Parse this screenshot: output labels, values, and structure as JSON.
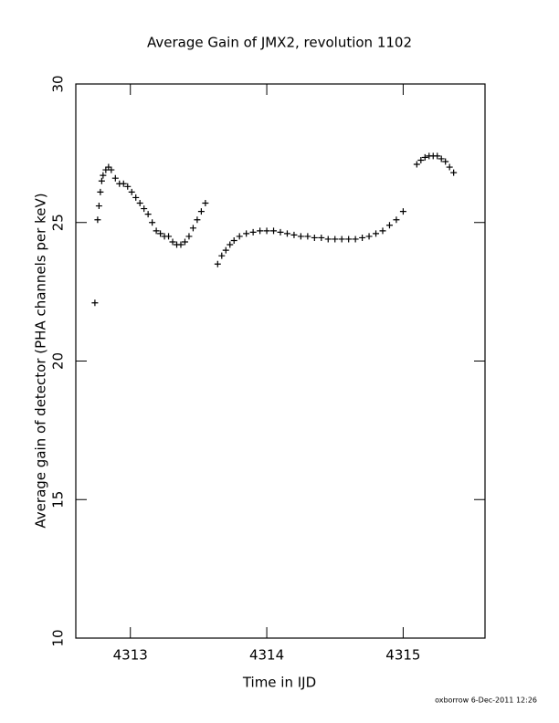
{
  "chart_data": {
    "type": "scatter",
    "title": "Average Gain of JMX2, revolution 1102",
    "x_label": "Time in IJD",
    "y_label": "Average gain of detector (PHA channels per keV)",
    "footer": "oxborrow  6-Dec-2011 12:26",
    "xlim": [
      4312.6,
      4315.6
    ],
    "xticks": [
      4313,
      4314,
      4315
    ],
    "ylim": [
      10,
      30
    ],
    "yticks": [
      10,
      15,
      20,
      25,
      30
    ],
    "color": "#000000",
    "x": [
      4312.74,
      4312.76,
      4312.77,
      4312.78,
      4312.79,
      4312.8,
      4312.82,
      4312.84,
      4312.86,
      4312.89,
      4312.92,
      4312.95,
      4312.98,
      4313.01,
      4313.04,
      4313.07,
      4313.1,
      4313.13,
      4313.16,
      4313.19,
      4313.22,
      4313.25,
      4313.28,
      4313.31,
      4313.34,
      4313.37,
      4313.4,
      4313.43,
      4313.46,
      4313.49,
      4313.52,
      4313.55,
      4313.64,
      4313.67,
      4313.7,
      4313.73,
      4313.76,
      4313.8,
      4313.85,
      4313.9,
      4313.95,
      4314.0,
      4314.05,
      4314.1,
      4314.15,
      4314.2,
      4314.25,
      4314.3,
      4314.35,
      4314.4,
      4314.45,
      4314.5,
      4314.55,
      4314.6,
      4314.65,
      4314.7,
      4314.75,
      4314.8,
      4314.85,
      4314.9,
      4314.95,
      4315.0,
      4315.1,
      4315.13,
      4315.16,
      4315.19,
      4315.22,
      4315.25,
      4315.28,
      4315.31,
      4315.34,
      4315.37
    ],
    "values": [
      22.1,
      25.1,
      25.6,
      26.1,
      26.5,
      26.7,
      26.9,
      27.0,
      26.9,
      26.6,
      26.4,
      26.4,
      26.3,
      26.1,
      25.9,
      25.7,
      25.5,
      25.3,
      25.0,
      24.7,
      24.6,
      24.5,
      24.5,
      24.3,
      24.2,
      24.2,
      24.3,
      24.5,
      24.8,
      25.1,
      25.4,
      25.7,
      23.5,
      23.8,
      24.0,
      24.2,
      24.35,
      24.5,
      24.6,
      24.65,
      24.7,
      24.7,
      24.7,
      24.65,
      24.6,
      24.55,
      24.5,
      24.5,
      24.45,
      24.45,
      24.4,
      24.4,
      24.4,
      24.4,
      24.4,
      24.45,
      24.5,
      24.6,
      24.7,
      24.9,
      25.1,
      25.4,
      27.1,
      27.25,
      27.35,
      27.4,
      27.4,
      27.4,
      27.3,
      27.2,
      27.0,
      26.8
    ]
  }
}
